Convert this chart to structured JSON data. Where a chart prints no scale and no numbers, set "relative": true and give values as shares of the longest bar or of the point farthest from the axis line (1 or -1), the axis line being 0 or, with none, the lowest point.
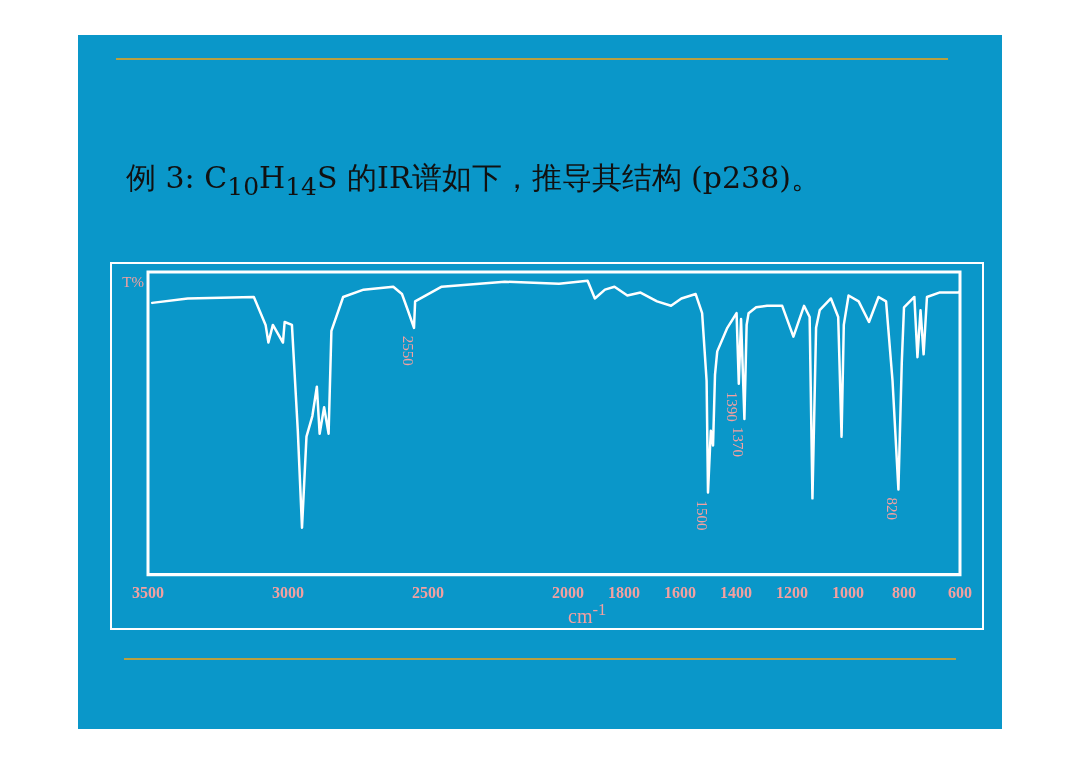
{
  "chart_data": {
    "type": "line",
    "title": "例 3: C$_{10}$H$_{14}$S 的IR谱如下，推导其结构 (p238)。",
    "xlabel": "cm$^{-1}$",
    "ylabel": "T%",
    "relative": true,
    "xlim": [
      3500,
      600
    ],
    "xticks": [
      3500,
      3000,
      2500,
      2000,
      1800,
      1600,
      1400,
      1200,
      1000,
      800,
      600
    ],
    "grid": false,
    "legend": false,
    "marker": "none",
    "line_style": "solid",
    "x": [
      3485,
      3358,
      3122,
      3080,
      3070,
      3054,
      3018,
      3012,
      2986,
      2965,
      2950,
      2934,
      2913,
      2897,
      2887,
      2871,
      2855,
      2845,
      2803,
      2730,
      2624,
      2593,
      2572,
      2550,
      2546,
      2451,
      2226,
      2032,
      1930,
      1904,
      1868,
      1834,
      1788,
      1741,
      1682,
      1632,
      1595,
      1544,
      1521,
      1505,
      1500,
      1490,
      1482,
      1475,
      1467,
      1431,
      1398,
      1390,
      1382,
      1370,
      1362,
      1355,
      1328,
      1289,
      1244,
      1235,
      1195,
      1157,
      1137,
      1127,
      1114,
      1101,
      1061,
      1035,
      1023,
      1015,
      998,
      962,
      925,
      891,
      864,
      841,
      820,
      808,
      800,
      763,
      752,
      741,
      730,
      718,
      674,
      606,
      600
    ],
    "series": [
      {
        "color": "#ffffff",
        "values": [
          0.925,
          0.94,
          0.945,
          0.85,
          0.79,
          0.85,
          0.79,
          0.86,
          0.85,
          0.49,
          0.16,
          0.47,
          0.54,
          0.64,
          0.48,
          0.57,
          0.48,
          0.83,
          0.945,
          0.97,
          0.98,
          0.955,
          0.9,
          0.84,
          0.93,
          0.98,
          0.997,
          0.99,
          1.0,
          0.94,
          0.97,
          0.98,
          0.95,
          0.96,
          0.93,
          0.915,
          0.94,
          0.955,
          0.89,
          0.66,
          0.28,
          0.49,
          0.44,
          0.68,
          0.76,
          0.84,
          0.89,
          0.65,
          0.87,
          0.53,
          0.85,
          0.89,
          0.91,
          0.915,
          0.915,
          0.915,
          0.81,
          0.915,
          0.877,
          0.26,
          0.84,
          0.9,
          0.94,
          0.877,
          0.47,
          0.85,
          0.95,
          0.93,
          0.86,
          0.945,
          0.93,
          0.66,
          0.29,
          0.72,
          0.91,
          0.945,
          0.74,
          0.9,
          0.75,
          0.945,
          0.96,
          0.96,
          0.965
        ]
      }
    ],
    "annotations": [
      {
        "text": "2550",
        "x": 2550,
        "y": 0.84
      },
      {
        "text": "1500",
        "x": 1500,
        "y": 0.28
      },
      {
        "text": "1390",
        "x": 1390,
        "y": 0.65
      },
      {
        "text": "1370",
        "x": 1370,
        "y": 0.53
      },
      {
        "text": "820",
        "x": 820,
        "y": 0.29
      }
    ]
  }
}
